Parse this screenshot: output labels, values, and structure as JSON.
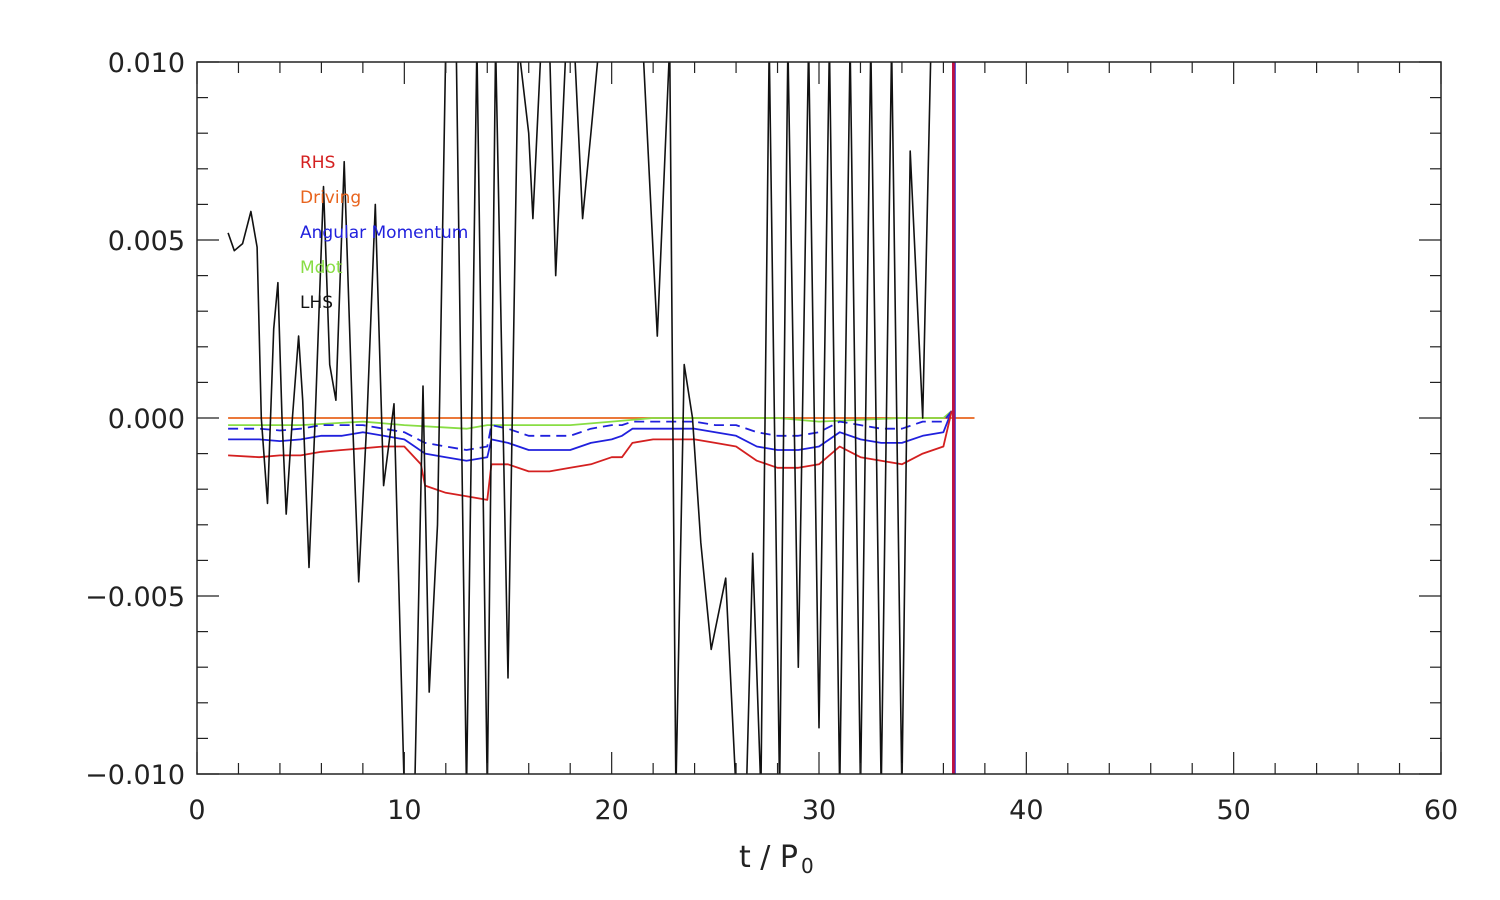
{
  "chart_data": {
    "type": "line",
    "title": "",
    "xlabel": "t / P",
    "xlabel_sub": "0",
    "ylabel": "",
    "xlim": [
      0,
      60
    ],
    "ylim": [
      -0.01,
      0.01
    ],
    "xticks": [
      0,
      10,
      20,
      30,
      40,
      50,
      60
    ],
    "yticks": [
      0.01,
      0.005,
      0.0,
      -0.005,
      -0.01
    ],
    "ytick_labels": [
      "0.010",
      "0.005",
      "0.000",
      "−0.005",
      "−0.010"
    ],
    "legend_placement": "top-left",
    "vertical_marker_x": 36.5,
    "series": [
      {
        "name": "RHS",
        "color": "#d42020",
        "style": "solid",
        "points": [
          [
            1.5,
            -0.00105
          ],
          [
            3,
            -0.0011
          ],
          [
            4,
            -0.00105
          ],
          [
            5,
            -0.00105
          ],
          [
            6,
            -0.00095
          ],
          [
            7,
            -0.0009
          ],
          [
            8,
            -0.00085
          ],
          [
            9,
            -0.0008
          ],
          [
            10,
            -0.0008
          ],
          [
            10.8,
            -0.0013
          ],
          [
            11,
            -0.0019
          ],
          [
            12,
            -0.0021
          ],
          [
            13,
            -0.0022
          ],
          [
            14,
            -0.0023
          ],
          [
            14.2,
            -0.0013
          ],
          [
            15,
            -0.0013
          ],
          [
            16,
            -0.0015
          ],
          [
            17,
            -0.0015
          ],
          [
            18,
            -0.0014
          ],
          [
            19,
            -0.0013
          ],
          [
            20,
            -0.0011
          ],
          [
            20.5,
            -0.0011
          ],
          [
            21,
            -0.0007
          ],
          [
            22,
            -0.0006
          ],
          [
            23,
            -0.0006
          ],
          [
            24,
            -0.0006
          ],
          [
            25,
            -0.0007
          ],
          [
            26,
            -0.0008
          ],
          [
            27,
            -0.0012
          ],
          [
            28,
            -0.0014
          ],
          [
            29,
            -0.0014
          ],
          [
            30,
            -0.0013
          ],
          [
            31,
            -0.0008
          ],
          [
            32,
            -0.0011
          ],
          [
            33,
            -0.0012
          ],
          [
            34,
            -0.0013
          ],
          [
            35,
            -0.001
          ],
          [
            36,
            -0.0008
          ],
          [
            36.4,
            0.0002
          ]
        ]
      },
      {
        "name": "Driving",
        "color": "#e8641e",
        "style": "solid",
        "points": [
          [
            1.5,
            0.0
          ],
          [
            37.5,
            0.0
          ]
        ]
      },
      {
        "name": "Angular Momentum",
        "color": "#2020dd",
        "style": "solid",
        "points": [
          [
            1.5,
            -0.0006
          ],
          [
            3,
            -0.0006
          ],
          [
            4,
            -0.00065
          ],
          [
            5,
            -0.0006
          ],
          [
            6,
            -0.0005
          ],
          [
            7,
            -0.0005
          ],
          [
            8,
            -0.0004
          ],
          [
            9,
            -0.0005
          ],
          [
            10,
            -0.0006
          ],
          [
            11,
            -0.001
          ],
          [
            12,
            -0.0011
          ],
          [
            13,
            -0.0012
          ],
          [
            14,
            -0.0011
          ],
          [
            14.2,
            -0.0006
          ],
          [
            15,
            -0.0007
          ],
          [
            16,
            -0.0009
          ],
          [
            17,
            -0.0009
          ],
          [
            18,
            -0.0009
          ],
          [
            19,
            -0.0007
          ],
          [
            20,
            -0.0006
          ],
          [
            20.5,
            -0.0005
          ],
          [
            21,
            -0.0003
          ],
          [
            22,
            -0.0003
          ],
          [
            23,
            -0.0003
          ],
          [
            24,
            -0.0003
          ],
          [
            25,
            -0.0004
          ],
          [
            26,
            -0.0005
          ],
          [
            27,
            -0.0008
          ],
          [
            28,
            -0.0009
          ],
          [
            29,
            -0.0009
          ],
          [
            30,
            -0.0008
          ],
          [
            31,
            -0.0004
          ],
          [
            32,
            -0.0006
          ],
          [
            33,
            -0.0007
          ],
          [
            34,
            -0.0007
          ],
          [
            35,
            -0.0005
          ],
          [
            36,
            -0.0004
          ],
          [
            36.4,
            0.0002
          ]
        ]
      },
      {
        "name": "Angular Momentum (dashed)",
        "color": "#2020dd",
        "style": "dashed",
        "points": [
          [
            1.5,
            -0.0003
          ],
          [
            3,
            -0.0003
          ],
          [
            4,
            -0.00035
          ],
          [
            5,
            -0.0003
          ],
          [
            6,
            -0.0002
          ],
          [
            7,
            -0.0002
          ],
          [
            8,
            -0.0002
          ],
          [
            9,
            -0.0003
          ],
          [
            10,
            -0.0004
          ],
          [
            11,
            -0.0007
          ],
          [
            12,
            -0.0008
          ],
          [
            13,
            -0.0009
          ],
          [
            14,
            -0.0008
          ],
          [
            14.2,
            -0.0002
          ],
          [
            15,
            -0.0003
          ],
          [
            16,
            -0.0005
          ],
          [
            17,
            -0.0005
          ],
          [
            18,
            -0.0005
          ],
          [
            19,
            -0.0003
          ],
          [
            20,
            -0.0002
          ],
          [
            20.5,
            -0.0002
          ],
          [
            21,
            -0.0001
          ],
          [
            22,
            -0.0001
          ],
          [
            23,
            -0.0001
          ],
          [
            24,
            -0.0001
          ],
          [
            25,
            -0.0002
          ],
          [
            26,
            -0.0002
          ],
          [
            27,
            -0.0004
          ],
          [
            28,
            -0.0005
          ],
          [
            29,
            -0.0005
          ],
          [
            30,
            -0.0004
          ],
          [
            31,
            -0.0001
          ],
          [
            32,
            -0.0002
          ],
          [
            33,
            -0.0003
          ],
          [
            34,
            -0.0003
          ],
          [
            35,
            -0.0001
          ],
          [
            36,
            -0.0001
          ],
          [
            36.4,
            0.0002
          ]
        ]
      },
      {
        "name": "Mdot",
        "color": "#88dd44",
        "style": "solid",
        "points": [
          [
            1.5,
            -0.0002
          ],
          [
            5,
            -0.0002
          ],
          [
            8,
            -0.0001
          ],
          [
            10,
            -0.0002
          ],
          [
            13,
            -0.0003
          ],
          [
            14,
            -0.0002
          ],
          [
            16,
            -0.0002
          ],
          [
            18,
            -0.0002
          ],
          [
            20,
            -0.0001
          ],
          [
            22,
            0.0
          ],
          [
            28,
            0.0
          ],
          [
            30,
            -0.0001
          ],
          [
            34,
            0.0
          ],
          [
            36,
            0.0
          ],
          [
            36.4,
            0.0002
          ]
        ]
      },
      {
        "name": "LHS",
        "color": "#111111",
        "style": "solid",
        "points": [
          [
            1.5,
            0.0052
          ],
          [
            1.8,
            0.0047
          ],
          [
            2.2,
            0.0049
          ],
          [
            2.6,
            0.0058
          ],
          [
            2.9,
            0.0048
          ],
          [
            3.1,
            0.0
          ],
          [
            3.4,
            -0.0024
          ],
          [
            3.7,
            0.0025
          ],
          [
            3.9,
            0.0038
          ],
          [
            4.1,
            0.0
          ],
          [
            4.3,
            -0.0027
          ],
          [
            4.6,
            0.0
          ],
          [
            4.9,
            0.0023
          ],
          [
            5.1,
            0.0005
          ],
          [
            5.4,
            -0.0042
          ],
          [
            5.7,
            0.0
          ],
          [
            6.1,
            0.0065
          ],
          [
            6.4,
            0.0015
          ],
          [
            6.7,
            0.0005
          ],
          [
            7.1,
            0.0072
          ],
          [
            7.5,
            0.0
          ],
          [
            7.8,
            -0.0046
          ],
          [
            8.2,
            0.0
          ],
          [
            8.6,
            0.006
          ],
          [
            9.0,
            -0.0019
          ],
          [
            9.5,
            0.0004
          ],
          [
            10.0,
            -0.0105
          ],
          [
            10.5,
            -0.0105
          ],
          [
            10.9,
            0.0009
          ],
          [
            11.2,
            -0.0077
          ],
          [
            11.6,
            -0.003
          ],
          [
            12.0,
            0.0105
          ],
          [
            12.5,
            0.0105
          ],
          [
            13.0,
            -0.0105
          ],
          [
            13.5,
            0.0105
          ],
          [
            14.0,
            -0.0105
          ],
          [
            14.4,
            0.0105
          ],
          [
            15.0,
            -0.0073
          ],
          [
            15.5,
            0.0105
          ],
          [
            16.0,
            0.008
          ],
          [
            16.2,
            0.0056
          ],
          [
            16.6,
            0.0105
          ],
          [
            17.0,
            0.0105
          ],
          [
            17.3,
            0.004
          ],
          [
            17.8,
            0.0105
          ],
          [
            18.2,
            0.0105
          ],
          [
            18.6,
            0.0056
          ],
          [
            19.0,
            0.008
          ],
          [
            19.4,
            0.0105
          ],
          [
            21.5,
            0.0105
          ],
          [
            22.2,
            0.0023
          ],
          [
            22.8,
            0.0105
          ],
          [
            23.1,
            -0.0105
          ],
          [
            23.5,
            0.0015
          ],
          [
            23.9,
            0.0
          ],
          [
            24.3,
            -0.0035
          ],
          [
            24.8,
            -0.0065
          ],
          [
            25.5,
            -0.0045
          ],
          [
            26.0,
            -0.0105
          ],
          [
            26.5,
            -0.0105
          ],
          [
            26.8,
            -0.0038
          ],
          [
            27.2,
            -0.0105
          ],
          [
            27.6,
            0.0105
          ],
          [
            28.1,
            -0.0105
          ],
          [
            28.5,
            0.0105
          ],
          [
            29.0,
            -0.007
          ],
          [
            29.5,
            0.0105
          ],
          [
            30.0,
            -0.0087
          ],
          [
            30.5,
            0.0105
          ],
          [
            31.0,
            -0.0105
          ],
          [
            31.5,
            0.0105
          ],
          [
            32.0,
            -0.0105
          ],
          [
            32.5,
            0.0105
          ],
          [
            33.0,
            -0.0105
          ],
          [
            33.5,
            0.0105
          ],
          [
            34.0,
            -0.0105
          ],
          [
            34.4,
            0.0075
          ],
          [
            35.0,
            0.0
          ],
          [
            35.4,
            0.0105
          ],
          [
            35.6,
            0.0105
          ]
        ]
      }
    ]
  }
}
